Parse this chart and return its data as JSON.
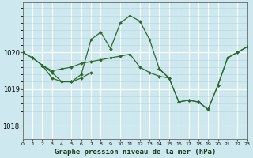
{
  "title": "Graphe pression niveau de la mer (hPa)",
  "bg_color": "#cde8ee",
  "line_color": "#2d6a2d",
  "grid_major_color": "#ffffff",
  "grid_minor_color": "#b5d5dc",
  "xlim": [
    0,
    23
  ],
  "ylim": [
    1017.65,
    1021.35
  ],
  "yticks": [
    1018,
    1019,
    1020
  ],
  "xticks": [
    0,
    1,
    2,
    3,
    4,
    5,
    6,
    7,
    8,
    9,
    10,
    11,
    12,
    13,
    14,
    15,
    16,
    17,
    18,
    19,
    20,
    21,
    22,
    23
  ],
  "series": [
    {
      "x": [
        0,
        1,
        2,
        3,
        4,
        5,
        6,
        7,
        8,
        9,
        10,
        11,
        12,
        13,
        14,
        15,
        16,
        17,
        18,
        19,
        20,
        21,
        22,
        23
      ],
      "y": [
        1020.0,
        1019.85,
        1019.65,
        1019.5,
        1019.55,
        1019.6,
        1019.7,
        1019.75,
        1019.8,
        1019.85,
        1019.9,
        1019.95,
        1019.6,
        1019.45,
        1019.35,
        1019.3,
        1018.65,
        1018.7,
        1018.65,
        1018.45,
        1019.1,
        1019.85,
        1020.0,
        1020.15
      ]
    },
    {
      "x": [
        0,
        1,
        2,
        3,
        4,
        5,
        6,
        7,
        8,
        9,
        10,
        11,
        12,
        13,
        14,
        15
      ],
      "y": [
        1020.0,
        1019.85,
        1019.65,
        1019.3,
        1019.2,
        1019.2,
        1019.4,
        1020.35,
        1020.55,
        1020.1,
        1020.8,
        1021.0,
        1020.85,
        1020.35,
        1019.55,
        1019.3
      ]
    },
    {
      "x": [
        2,
        3,
        4,
        5,
        6,
        7
      ],
      "y": [
        1019.65,
        1019.45,
        1019.2,
        1019.2,
        1019.3,
        1019.45
      ]
    },
    {
      "x": [
        14,
        15,
        16,
        17,
        18,
        19,
        20,
        21,
        22,
        23
      ],
      "y": [
        1019.55,
        1019.3,
        1018.65,
        1018.7,
        1018.65,
        1018.45,
        1019.1,
        1019.85,
        1020.0,
        1020.15
      ]
    }
  ]
}
